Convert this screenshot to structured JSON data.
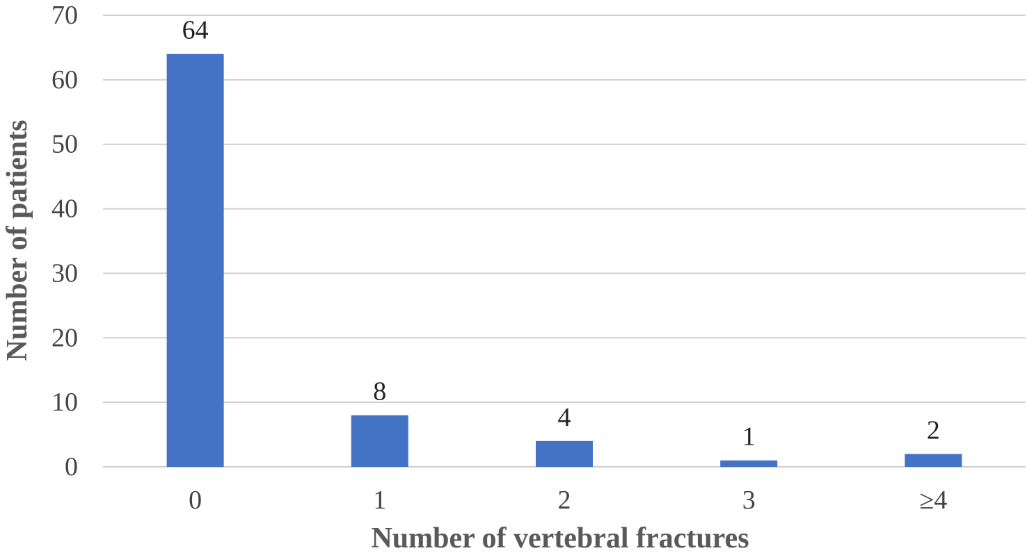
{
  "chart_data": {
    "type": "bar",
    "categories": [
      "0",
      "1",
      "2",
      "3",
      "≥4"
    ],
    "values": [
      64,
      8,
      4,
      1,
      2
    ],
    "data_labels": [
      "64",
      "8",
      "4",
      "1",
      "2"
    ],
    "xlabel": "Number of vertebral fractures",
    "ylabel": "Number of patients",
    "ylim": [
      0,
      70
    ],
    "yticks": [
      0,
      10,
      20,
      30,
      40,
      50,
      60,
      70
    ],
    "grid": true,
    "bar_color": "#4472C4",
    "grid_color": "#D0D0D0"
  }
}
